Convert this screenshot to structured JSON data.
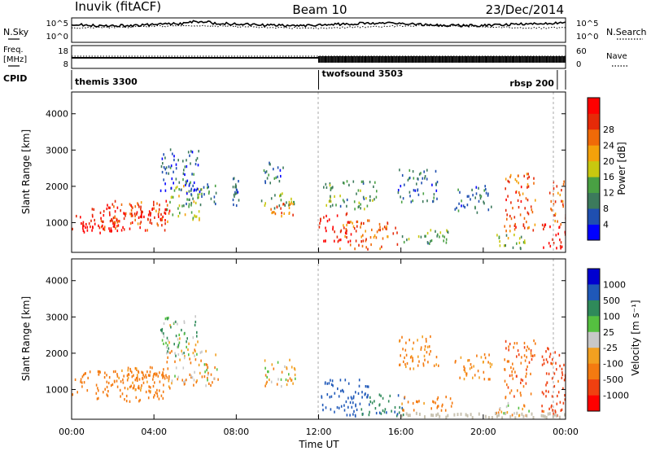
{
  "header": {
    "station": "Inuvik (fitACF)",
    "beam": "Beam 10",
    "date": "23/Dec/2014"
  },
  "side_labels": {
    "nsky": "N.Sky",
    "nsearch": "N.Search",
    "freq": "Freq.",
    "freq_unit": "[MHz]",
    "nave": "Nave",
    "cpid": "CPID"
  },
  "small_axes": {
    "nsky_ticks": [
      "10^5",
      "10^0"
    ],
    "nsearch_ticks": [
      "10^5",
      "10^0"
    ],
    "freq_ticks": [
      "18",
      "8"
    ],
    "nave_ticks": [
      "60",
      "0"
    ]
  },
  "cpid_segments": [
    {
      "label": "themis 3300",
      "start": 0
    },
    {
      "label": "twofsound 3503",
      "start": 12
    },
    {
      "label": "rbsp 200",
      "start": 23.6
    }
  ],
  "colors": {
    "power": [
      "#0000ff",
      "#1f4fb0",
      "#3c7a5c",
      "#49a043",
      "#c8c80f",
      "#f4a10a",
      "#f06a08",
      "#e62a08",
      "#ff0000"
    ],
    "velocity": [
      "#0000d0",
      "#1f58b8",
      "#2f8a5a",
      "#55c040",
      "#c8c8c8",
      "#f2a020",
      "#f47a10",
      "#f04010",
      "#ff0000"
    ],
    "ground": "#c8c2b0"
  },
  "chart_data": [
    {
      "type": "heatmap",
      "name": "power",
      "xlabel": "",
      "ylabel": "Slant Range [km]",
      "xlim": [
        0,
        24
      ],
      "ylim": [
        180,
        4600
      ],
      "yticks": [
        "1000",
        "2000",
        "3000",
        "4000"
      ],
      "colorbar": {
        "label": "Power [dB]",
        "ticks": [
          "4",
          "8",
          "12",
          "16",
          "20",
          "24",
          "28"
        ]
      },
      "patches": [
        {
          "t0": 0.0,
          "t1": 2.3,
          "r0": 700,
          "r1": 1250,
          "v": 27
        },
        {
          "t0": 0.5,
          "t1": 4.6,
          "r0": 800,
          "r1": 1550,
          "v": 26
        },
        {
          "t0": 2.0,
          "t1": 4.8,
          "r0": 950,
          "r1": 1650,
          "v": 24
        },
        {
          "t0": 4.6,
          "t1": 6.3,
          "r0": 1100,
          "r1": 2050,
          "v": 14
        },
        {
          "t0": 5.4,
          "t1": 7.1,
          "r0": 1500,
          "r1": 2150,
          "v": 9
        },
        {
          "t0": 4.3,
          "t1": 6.2,
          "r0": 1900,
          "r1": 3050,
          "v": 8
        },
        {
          "t0": 7.8,
          "t1": 8.1,
          "r0": 1500,
          "r1": 2300,
          "v": 8
        },
        {
          "t0": 9.2,
          "t1": 10.9,
          "r0": 1400,
          "r1": 1850,
          "v": 14
        },
        {
          "t0": 9.6,
          "t1": 10.8,
          "r0": 1100,
          "r1": 1600,
          "v": 21
        },
        {
          "t0": 9.3,
          "t1": 10.3,
          "r0": 2100,
          "r1": 2700,
          "v": 9
        },
        {
          "t0": 12.0,
          "t1": 13.6,
          "r0": 500,
          "r1": 1300,
          "v": 28
        },
        {
          "t0": 13.0,
          "t1": 15.8,
          "r0": 300,
          "r1": 1100,
          "v": 22
        },
        {
          "t0": 12.2,
          "t1": 14.8,
          "r0": 1400,
          "r1": 2200,
          "v": 12
        },
        {
          "t0": 15.8,
          "t1": 17.8,
          "r0": 1600,
          "r1": 2500,
          "v": 9
        },
        {
          "t0": 16.0,
          "t1": 18.5,
          "r0": 450,
          "r1": 850,
          "v": 12
        },
        {
          "t0": 18.6,
          "t1": 20.4,
          "r0": 1300,
          "r1": 2050,
          "v": 9
        },
        {
          "t0": 20.6,
          "t1": 22.2,
          "r0": 300,
          "r1": 700,
          "v": 14
        },
        {
          "t0": 21.0,
          "t1": 22.5,
          "r0": 800,
          "r1": 2400,
          "v": 23
        },
        {
          "t0": 22.8,
          "t1": 24.0,
          "r0": 300,
          "r1": 1000,
          "v": 27
        },
        {
          "t0": 23.2,
          "t1": 24.0,
          "r0": 900,
          "r1": 2200,
          "v": 22
        }
      ]
    },
    {
      "type": "heatmap",
      "name": "velocity",
      "xlabel": "Time UT",
      "ylabel": "Slant Range [km]",
      "xlim": [
        0,
        24
      ],
      "ylim": [
        180,
        4600
      ],
      "xticks": [
        "00:00",
        "04:00",
        "08:00",
        "12:00",
        "16:00",
        "20:00",
        "00:00"
      ],
      "yticks": [
        "1000",
        "2000",
        "3000",
        "4000"
      ],
      "colorbar": {
        "label": "Velocity [m s⁻¹]",
        "ticks": [
          "1000",
          "500",
          "100",
          "25",
          "-25",
          "-100",
          "-500",
          "-1000"
        ]
      },
      "patches": [
        {
          "t0": 0.0,
          "t1": 4.6,
          "r0": 700,
          "r1": 1550,
          "v": -300
        },
        {
          "t0": 2.0,
          "t1": 4.8,
          "r0": 950,
          "r1": 1650,
          "v": -150
        },
        {
          "t0": 4.6,
          "t1": 7.1,
          "r0": 1100,
          "r1": 2150,
          "v": -80
        },
        {
          "t0": 4.3,
          "t1": 6.2,
          "r0": 1900,
          "r1": 3050,
          "v": 60
        },
        {
          "t0": 9.2,
          "t1": 10.9,
          "r0": 1100,
          "r1": 1850,
          "v": -60
        },
        {
          "t0": 12.0,
          "t1": 14.4,
          "r0": 300,
          "r1": 1300,
          "v": 700
        },
        {
          "t0": 14.0,
          "t1": 16.2,
          "r0": 300,
          "r1": 900,
          "v": 400
        },
        {
          "t0": 15.8,
          "t1": 17.8,
          "r0": 1600,
          "r1": 2500,
          "v": -150
        },
        {
          "t0": 16.0,
          "t1": 18.5,
          "r0": 450,
          "r1": 850,
          "v": -200
        },
        {
          "t0": 18.6,
          "t1": 20.4,
          "r0": 1300,
          "r1": 2050,
          "v": -150
        },
        {
          "t0": 20.6,
          "t1": 22.2,
          "r0": 300,
          "r1": 700,
          "v": -60
        },
        {
          "t0": 21.0,
          "t1": 22.5,
          "r0": 800,
          "r1": 2400,
          "v": -450
        },
        {
          "t0": 22.8,
          "t1": 24.0,
          "r0": 300,
          "r1": 2200,
          "v": -600
        }
      ]
    }
  ]
}
